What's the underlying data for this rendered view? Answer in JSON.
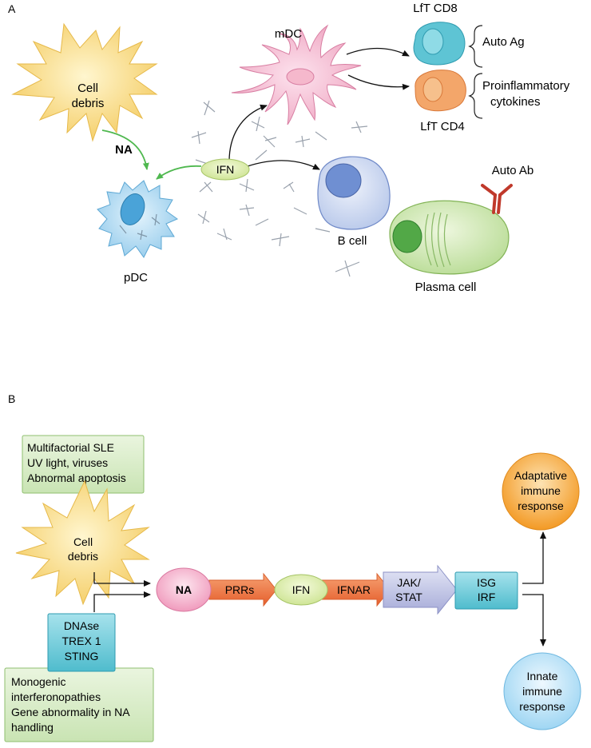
{
  "panel_a": {
    "label": "A",
    "cell_debris": [
      "Cell",
      "debris"
    ],
    "na": "NA",
    "ifn": "IFN",
    "mdc": "mDC",
    "pdc": "pDC",
    "b_cell": "B cell",
    "plasma_cell": "Plasma cell",
    "auto_ab": "Auto Ab",
    "lft_cd8": "LfT CD8",
    "lft_cd4": "LfT CD4",
    "auto_ag": "Auto Ag",
    "proinflammatory": [
      "Proinflammatory",
      "cytokines"
    ]
  },
  "panel_b": {
    "label": "B",
    "factors_box": [
      "Multifactorial SLE",
      "UV light, viruses",
      "Abnormal apoptosis"
    ],
    "cell_debris": [
      "Cell",
      "debris"
    ],
    "dnase_box": [
      "DNAse",
      "TREX 1",
      "STING"
    ],
    "monogenic_box": [
      "Monogenic",
      "interferonopathies",
      "Gene abnormality in NA",
      "handling"
    ],
    "na": "NA",
    "prrs": "PRRs",
    "ifn": "IFN",
    "ifnar": "IFNAR",
    "jak_stat": [
      "JAK/",
      "STAT"
    ],
    "isg_irf": [
      "ISG",
      "IRF"
    ],
    "adaptive": [
      "Adaptative",
      "immune",
      "response"
    ],
    "innate": [
      "Innate",
      "immune",
      "response"
    ]
  },
  "colors": {
    "yellow": "#f7d77a",
    "green": "#cfe6b0",
    "green_box": "#d6ecc8",
    "pink": "#f3b6cd",
    "orange": "#ee7a4a",
    "teal": "#5ec4d4",
    "blue_light": "#bfe0f4",
    "orange_circle": "#f6a43a"
  }
}
